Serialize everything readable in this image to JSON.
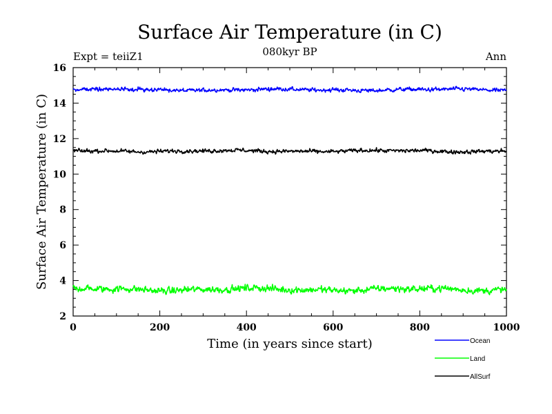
{
  "chart_data": {
    "type": "line",
    "title": "Surface Air Temperature (in C)",
    "subtitle": "080kyr BP",
    "left_label": "Expt = teiiZ1",
    "right_label": "Ann",
    "xlabel": "Time (in years since start)",
    "ylabel": "Surface Air Temperature (in C)",
    "xlim": [
      0,
      1000
    ],
    "ylim": [
      2,
      16
    ],
    "xticks": [
      "0",
      "200",
      "400",
      "600",
      "800",
      "1000"
    ],
    "yticks": [
      "2",
      "4",
      "6",
      "8",
      "10",
      "12",
      "14",
      "16"
    ],
    "grid": false,
    "legend_position": "bottom-right",
    "series": [
      {
        "name": "Ocean",
        "color": "#0000ff",
        "mean": 14.75,
        "amplitude": 0.13
      },
      {
        "name": "Land",
        "color": "#00ff00",
        "mean": 3.5,
        "amplitude": 0.22
      },
      {
        "name": "AllSurf",
        "color": "#000000",
        "mean": 11.3,
        "amplitude": 0.13
      }
    ]
  }
}
